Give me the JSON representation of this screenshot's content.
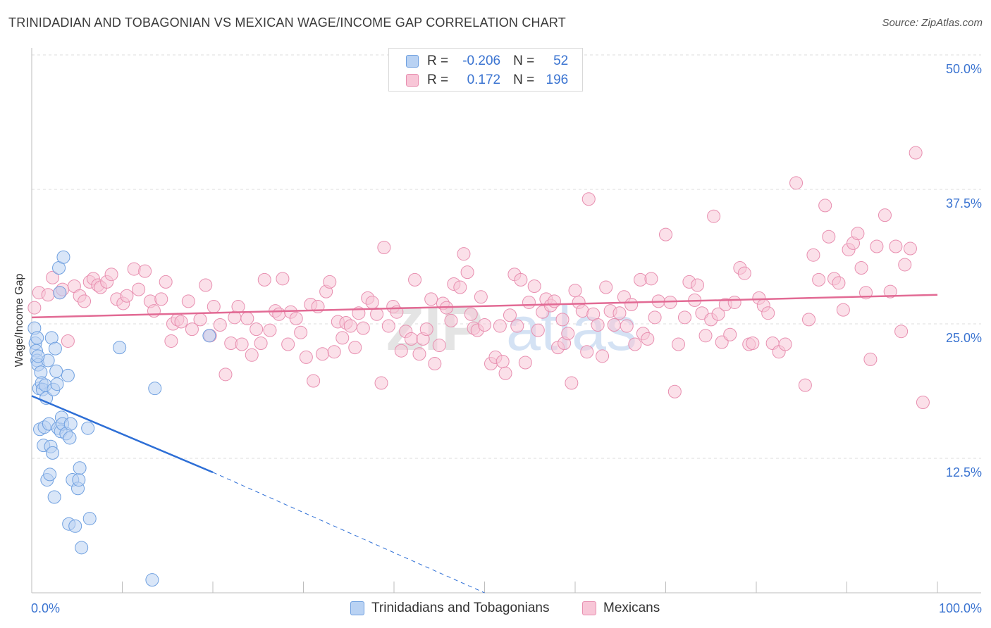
{
  "title": "TRINIDADIAN AND TOBAGONIAN VS MEXICAN WAGE/INCOME GAP CORRELATION CHART",
  "source": "Source: ZipAtlas.com",
  "legend_top": {
    "rows": [
      {
        "r_label": "R =",
        "r_value": "-0.206",
        "n_label": "N =",
        "n_value": "52",
        "color": "#6fa0e0",
        "fill": "#b9d2f3"
      },
      {
        "r_label": "R =",
        "r_value": "0.172",
        "n_label": "N =",
        "n_value": "196",
        "color": "#e88fb0",
        "fill": "#f8c6d7"
      }
    ]
  },
  "bottom_legend": [
    {
      "label": "Trinidadians and Tobagonians",
      "color": "#6fa0e0",
      "fill": "#b9d2f3"
    },
    {
      "label": "Mexicans",
      "color": "#e88fb0",
      "fill": "#f8c6d7"
    }
  ],
  "watermark": "ZIPatlas",
  "chart_data": {
    "type": "scatter",
    "title": "TRINIDADIAN AND TOBAGONIAN VS MEXICAN WAGE/INCOME GAP CORRELATION CHART",
    "xlabel": "",
    "ylabel": "Wage/Income Gap",
    "xlim": [
      0,
      100
    ],
    "ylim": [
      0,
      50
    ],
    "x_tick_labels": [
      "0.0%",
      "100.0%"
    ],
    "y_ticks": [
      12.5,
      25.0,
      37.5,
      50.0
    ],
    "y_tick_labels": [
      "12.5%",
      "25.0%",
      "37.5%",
      "50.0%"
    ],
    "grid": true,
    "legend_position": "top-center",
    "series": [
      {
        "name": "Trinidadians and Tobagonians",
        "color": "#6fa0e0",
        "fill": "#b9d2f3",
        "trend": {
          "x": [
            0,
            20
          ],
          "y": [
            18.3,
            11.2
          ],
          "dashed_to": [
            50,
            0
          ]
        },
        "points": [
          [
            0.3,
            24.6
          ],
          [
            0.4,
            23.2
          ],
          [
            0.5,
            22.5
          ],
          [
            0.6,
            21.6
          ],
          [
            0.7,
            21.2
          ],
          [
            0.8,
            19.0
          ],
          [
            0.9,
            15.2
          ],
          [
            1.0,
            20.5
          ],
          [
            1.1,
            19.5
          ],
          [
            1.2,
            18.9
          ],
          [
            1.3,
            13.7
          ],
          [
            1.4,
            15.4
          ],
          [
            1.5,
            19.3
          ],
          [
            1.6,
            18.1
          ],
          [
            1.7,
            10.5
          ],
          [
            1.8,
            21.6
          ],
          [
            1.9,
            15.7
          ],
          [
            2.0,
            11.0
          ],
          [
            2.1,
            13.6
          ],
          [
            2.2,
            23.7
          ],
          [
            2.3,
            13.0
          ],
          [
            2.4,
            18.9
          ],
          [
            2.5,
            8.9
          ],
          [
            2.6,
            22.7
          ],
          [
            2.7,
            20.6
          ],
          [
            2.8,
            19.4
          ],
          [
            2.9,
            15.3
          ],
          [
            3.0,
            30.2
          ],
          [
            3.1,
            27.9
          ],
          [
            3.2,
            15.0
          ],
          [
            3.3,
            16.3
          ],
          [
            3.4,
            15.7
          ],
          [
            3.5,
            31.2
          ],
          [
            3.8,
            14.8
          ],
          [
            4.0,
            20.2
          ],
          [
            4.1,
            6.4
          ],
          [
            4.2,
            14.4
          ],
          [
            4.3,
            15.7
          ],
          [
            4.5,
            10.5
          ],
          [
            4.8,
            6.2
          ],
          [
            5.1,
            9.7
          ],
          [
            5.2,
            10.5
          ],
          [
            5.3,
            11.6
          ],
          [
            5.5,
            4.2
          ],
          [
            6.2,
            15.3
          ],
          [
            6.4,
            6.9
          ],
          [
            9.7,
            22.8
          ],
          [
            13.3,
            1.2
          ],
          [
            13.6,
            19.0
          ],
          [
            19.6,
            23.9
          ],
          [
            0.6,
            23.7
          ],
          [
            0.7,
            22.0
          ]
        ]
      },
      {
        "name": "Mexicans",
        "color": "#e88fb0",
        "fill": "#f8c6d7",
        "trend": {
          "x": [
            0,
            100
          ],
          "y": [
            25.6,
            27.7
          ]
        },
        "points": [
          [
            0.3,
            26.5
          ],
          [
            0.8,
            27.9
          ],
          [
            1.8,
            27.7
          ],
          [
            2.3,
            29.3
          ],
          [
            3.1,
            27.9
          ],
          [
            3.4,
            28.2
          ],
          [
            4.0,
            23.4
          ],
          [
            4.7,
            28.5
          ],
          [
            5.3,
            27.6
          ],
          [
            5.8,
            27.1
          ],
          [
            6.4,
            28.9
          ],
          [
            6.8,
            29.2
          ],
          [
            7.3,
            28.6
          ],
          [
            7.6,
            28.4
          ],
          [
            8.3,
            28.9
          ],
          [
            8.8,
            29.6
          ],
          [
            9.4,
            27.3
          ],
          [
            10.1,
            26.9
          ],
          [
            10.5,
            27.6
          ],
          [
            11.3,
            30.1
          ],
          [
            11.8,
            28.2
          ],
          [
            12.5,
            29.9
          ],
          [
            13.1,
            27.1
          ],
          [
            13.5,
            26.2
          ],
          [
            14.3,
            27.3
          ],
          [
            14.8,
            28.9
          ],
          [
            15.4,
            23.4
          ],
          [
            15.6,
            25.0
          ],
          [
            16.1,
            25.4
          ],
          [
            16.5,
            25.2
          ],
          [
            17.3,
            27.1
          ],
          [
            17.7,
            24.5
          ],
          [
            18.6,
            25.4
          ],
          [
            19.2,
            28.6
          ],
          [
            19.7,
            23.9
          ],
          [
            20.1,
            26.6
          ],
          [
            20.8,
            24.9
          ],
          [
            21.4,
            20.3
          ],
          [
            22.0,
            23.2
          ],
          [
            22.4,
            25.6
          ],
          [
            22.8,
            26.6
          ],
          [
            23.2,
            23.1
          ],
          [
            23.8,
            25.5
          ],
          [
            24.3,
            22.1
          ],
          [
            24.8,
            24.5
          ],
          [
            25.3,
            23.2
          ],
          [
            25.7,
            29.1
          ],
          [
            26.3,
            24.4
          ],
          [
            26.9,
            26.2
          ],
          [
            27.3,
            25.9
          ],
          [
            27.7,
            29.2
          ],
          [
            28.3,
            23.1
          ],
          [
            28.6,
            26.1
          ],
          [
            29.2,
            25.5
          ],
          [
            29.7,
            24.2
          ],
          [
            30.3,
            21.9
          ],
          [
            30.8,
            26.8
          ],
          [
            31.1,
            19.7
          ],
          [
            31.6,
            26.6
          ],
          [
            32.1,
            22.2
          ],
          [
            32.5,
            28.0
          ],
          [
            32.9,
            28.9
          ],
          [
            33.4,
            22.4
          ],
          [
            33.8,
            25.2
          ],
          [
            34.3,
            23.7
          ],
          [
            34.7,
            25.1
          ],
          [
            35.2,
            24.8
          ],
          [
            35.7,
            22.8
          ],
          [
            36.1,
            26.0
          ],
          [
            36.6,
            24.6
          ],
          [
            37.1,
            27.4
          ],
          [
            37.6,
            27.0
          ],
          [
            38.1,
            25.9
          ],
          [
            38.6,
            19.5
          ],
          [
            38.9,
            32.1
          ],
          [
            39.4,
            24.8
          ],
          [
            39.9,
            26.6
          ],
          [
            40.3,
            26.1
          ],
          [
            40.8,
            22.5
          ],
          [
            41.3,
            24.3
          ],
          [
            41.9,
            23.6
          ],
          [
            42.3,
            29.1
          ],
          [
            42.8,
            22.2
          ],
          [
            43.2,
            23.6
          ],
          [
            43.6,
            24.5
          ],
          [
            44.1,
            27.3
          ],
          [
            44.5,
            21.3
          ],
          [
            45.0,
            23.0
          ],
          [
            45.4,
            26.9
          ],
          [
            45.8,
            26.5
          ],
          [
            46.3,
            25.3
          ],
          [
            46.6,
            28.7
          ],
          [
            47.3,
            28.4
          ],
          [
            47.7,
            31.5
          ],
          [
            48.1,
            29.8
          ],
          [
            48.5,
            25.9
          ],
          [
            48.8,
            24.6
          ],
          [
            49.2,
            24.4
          ],
          [
            49.6,
            27.5
          ],
          [
            50.0,
            24.9
          ],
          [
            50.7,
            21.3
          ],
          [
            51.2,
            21.9
          ],
          [
            51.7,
            24.8
          ],
          [
            52.0,
            21.5
          ],
          [
            52.3,
            20.4
          ],
          [
            52.8,
            25.8
          ],
          [
            53.3,
            29.6
          ],
          [
            53.6,
            24.8
          ],
          [
            54.0,
            29.1
          ],
          [
            54.5,
            21.4
          ],
          [
            54.9,
            27.0
          ],
          [
            55.5,
            28.5
          ],
          [
            55.9,
            24.4
          ],
          [
            56.4,
            26.1
          ],
          [
            56.8,
            27.3
          ],
          [
            57.3,
            26.7
          ],
          [
            57.7,
            27.1
          ],
          [
            58.1,
            22.8
          ],
          [
            58.6,
            25.4
          ],
          [
            58.8,
            23.2
          ],
          [
            59.2,
            24.1
          ],
          [
            59.6,
            19.5
          ],
          [
            60.0,
            28.1
          ],
          [
            60.4,
            27.0
          ],
          [
            60.8,
            26.2
          ],
          [
            61.3,
            22.4
          ],
          [
            61.5,
            36.6
          ],
          [
            62.0,
            25.9
          ],
          [
            62.5,
            24.9
          ],
          [
            63.0,
            22.0
          ],
          [
            63.4,
            28.4
          ],
          [
            63.9,
            26.2
          ],
          [
            64.3,
            24.9
          ],
          [
            64.9,
            26.0
          ],
          [
            65.4,
            27.5
          ],
          [
            65.7,
            24.8
          ],
          [
            66.2,
            26.8
          ],
          [
            66.6,
            23.1
          ],
          [
            67.2,
            29.1
          ],
          [
            67.5,
            24.1
          ],
          [
            68.0,
            23.6
          ],
          [
            68.4,
            29.2
          ],
          [
            68.8,
            25.6
          ],
          [
            69.2,
            27.1
          ],
          [
            70.0,
            33.3
          ],
          [
            70.5,
            27.0
          ],
          [
            71.0,
            18.7
          ],
          [
            71.4,
            23.1
          ],
          [
            72.1,
            25.6
          ],
          [
            72.6,
            28.9
          ],
          [
            73.2,
            27.2
          ],
          [
            73.5,
            28.6
          ],
          [
            74.0,
            26.0
          ],
          [
            74.4,
            23.9
          ],
          [
            75.0,
            25.4
          ],
          [
            75.3,
            35.0
          ],
          [
            75.8,
            25.9
          ],
          [
            76.2,
            23.3
          ],
          [
            76.6,
            26.8
          ],
          [
            77.1,
            24.0
          ],
          [
            77.6,
            27.0
          ],
          [
            78.2,
            30.2
          ],
          [
            78.7,
            29.7
          ],
          [
            79.2,
            23.1
          ],
          [
            79.6,
            23.2
          ],
          [
            80.3,
            27.4
          ],
          [
            80.8,
            26.7
          ],
          [
            81.3,
            26.0
          ],
          [
            81.8,
            23.2
          ],
          [
            82.5,
            22.4
          ],
          [
            83.2,
            23.1
          ],
          [
            84.4,
            38.1
          ],
          [
            85.4,
            19.3
          ],
          [
            85.8,
            25.4
          ],
          [
            86.3,
            31.4
          ],
          [
            86.9,
            29.1
          ],
          [
            87.6,
            36.0
          ],
          [
            88.0,
            33.1
          ],
          [
            88.6,
            29.2
          ],
          [
            89.1,
            28.8
          ],
          [
            89.6,
            26.3
          ],
          [
            90.2,
            31.9
          ],
          [
            90.7,
            32.5
          ],
          [
            91.2,
            33.4
          ],
          [
            91.6,
            30.2
          ],
          [
            92.1,
            27.9
          ],
          [
            92.6,
            21.7
          ],
          [
            93.3,
            32.2
          ],
          [
            94.2,
            35.1
          ],
          [
            94.8,
            28.0
          ],
          [
            95.4,
            32.2
          ],
          [
            96.0,
            24.3
          ],
          [
            96.4,
            30.5
          ],
          [
            97.0,
            32.0
          ],
          [
            97.6,
            40.9
          ],
          [
            98.4,
            17.7
          ]
        ]
      }
    ]
  }
}
